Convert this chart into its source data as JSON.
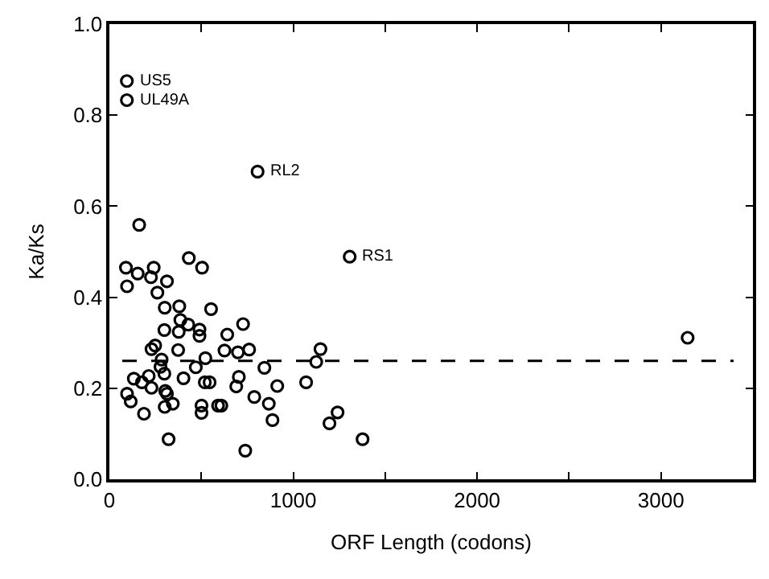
{
  "chart_data": {
    "type": "scatter",
    "xlabel": "ORF Length (codons)",
    "ylabel": "Ka/Ks",
    "x": [
      95,
      95,
      806,
      1307,
      3145,
      162,
      90,
      154,
      241,
      226,
      313,
      96,
      261,
      432,
      504,
      301,
      380,
      553,
      386,
      299,
      377,
      429,
      490,
      490,
      727,
      641,
      229,
      249,
      374,
      626,
      699,
      760,
      284,
      278,
      522,
      470,
      133,
      177,
      214,
      299,
      229,
      304,
      403,
      519,
      545,
      704,
      690,
      843,
      913,
      1070,
      1125,
      1148,
      96,
      116,
      313,
      301,
      345,
      788,
      867,
      188,
      501,
      501,
      591,
      609,
      887,
      1197,
      1241,
      322,
      739,
      1377
    ],
    "series": [
      {
        "color": "#000000",
        "values": [
          0.875,
          0.833,
          0.676,
          0.489,
          0.311,
          0.559,
          0.465,
          0.452,
          0.465,
          0.444,
          0.435,
          0.424,
          0.41,
          0.486,
          0.465,
          0.377,
          0.38,
          0.374,
          0.35,
          0.328,
          0.324,
          0.34,
          0.329,
          0.315,
          0.341,
          0.318,
          0.286,
          0.294,
          0.284,
          0.283,
          0.279,
          0.285,
          0.263,
          0.247,
          0.266,
          0.246,
          0.221,
          0.213,
          0.227,
          0.232,
          0.201,
          0.194,
          0.222,
          0.213,
          0.213,
          0.225,
          0.204,
          0.245,
          0.205,
          0.213,
          0.258,
          0.286,
          0.188,
          0.171,
          0.188,
          0.159,
          0.166,
          0.181,
          0.166,
          0.144,
          0.162,
          0.146,
          0.162,
          0.162,
          0.13,
          0.123,
          0.147,
          0.088,
          0.063,
          0.088
        ]
      }
    ],
    "annotations": [
      {
        "text": "US5",
        "x": 95,
        "y": 0.875
      },
      {
        "text": "UL49A",
        "x": 95,
        "y": 0.833
      },
      {
        "text": "RL2",
        "x": 806,
        "y": 0.676
      },
      {
        "text": "RS1",
        "x": 1307,
        "y": 0.489
      }
    ],
    "ref_lines": [
      {
        "axis": "y",
        "value": 0.26,
        "line_style": "dashed",
        "color": "#000000"
      }
    ],
    "xlim": [
      0,
      3500
    ],
    "xticks": [
      0,
      {
        "value": 500,
        "label": null
      },
      1000,
      {
        "value": 1500,
        "label": null
      },
      2000,
      {
        "value": 2500,
        "label": null
      },
      3000
    ],
    "ylim": [
      0,
      1.0
    ],
    "yticks": [
      {
        "value": 0,
        "label": "0.0"
      },
      0.2,
      0.4,
      0.6,
      0.8,
      {
        "value": 1.0,
        "label": "1.0"
      }
    ],
    "marker": "circle"
  }
}
